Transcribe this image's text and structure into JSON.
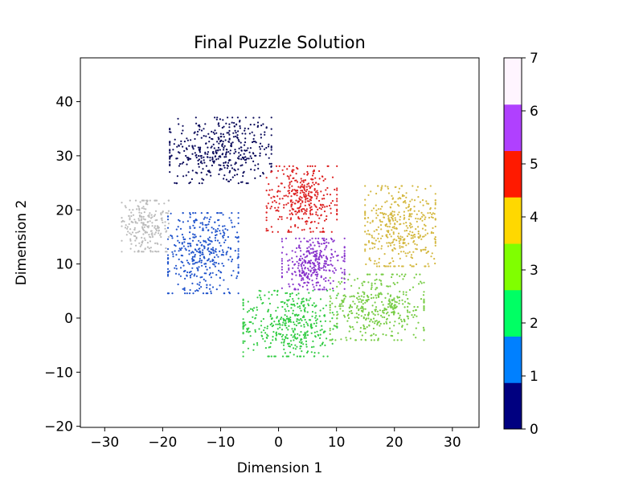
{
  "chart_data": {
    "type": "scatter",
    "title": "Final Puzzle Solution",
    "xlabel": "Dimension 1",
    "ylabel": "Dimension 2",
    "xlim": [
      -34.2,
      34.6
    ],
    "ylim": [
      -20.2,
      48.1
    ],
    "xticks": [
      -30,
      -20,
      -10,
      0,
      10,
      20,
      30
    ],
    "yticks": [
      -20,
      -10,
      0,
      10,
      20,
      30,
      40
    ],
    "grid": false,
    "colorbar": {
      "range": [
        0,
        7
      ],
      "ticks": [
        0,
        1,
        2,
        3,
        4,
        5,
        6,
        7
      ],
      "colors": [
        "#000080",
        "#0080ff",
        "#00ff64",
        "#80ff00",
        "#ffd800",
        "#ff1a00",
        "#b040ff",
        "#fff5ff"
      ]
    },
    "clusters": [
      {
        "label": 0,
        "color": "#0a0a5a",
        "center": [
          -10,
          31
        ],
        "spread": [
          6.5,
          4.5
        ],
        "count": 420
      },
      {
        "label": 1,
        "color": "#2255cc",
        "center": [
          -13,
          12
        ],
        "spread": [
          4.5,
          5.5
        ],
        "count": 400
      },
      {
        "label": 2,
        "color": "#33cc44",
        "center": [
          2,
          -1
        ],
        "spread": [
          6.0,
          4.5
        ],
        "count": 420
      },
      {
        "label": 3,
        "color": "#77cc44",
        "center": [
          17,
          2
        ],
        "spread": [
          6.0,
          4.5
        ],
        "count": 400
      },
      {
        "label": 4,
        "color": "#d4b840",
        "center": [
          21,
          17
        ],
        "spread": [
          4.5,
          5.5
        ],
        "count": 400
      },
      {
        "label": 5,
        "color": "#dd2222",
        "center": [
          4,
          22
        ],
        "spread": [
          4.5,
          4.5
        ],
        "count": 360
      },
      {
        "label": 6,
        "color": "#8833cc",
        "center": [
          6,
          10
        ],
        "spread": [
          4.0,
          3.5
        ],
        "count": 320
      },
      {
        "label": 7,
        "color": "#bbbbbb",
        "center": [
          -23,
          17
        ],
        "spread": [
          3.0,
          3.5
        ],
        "count": 220
      }
    ]
  }
}
